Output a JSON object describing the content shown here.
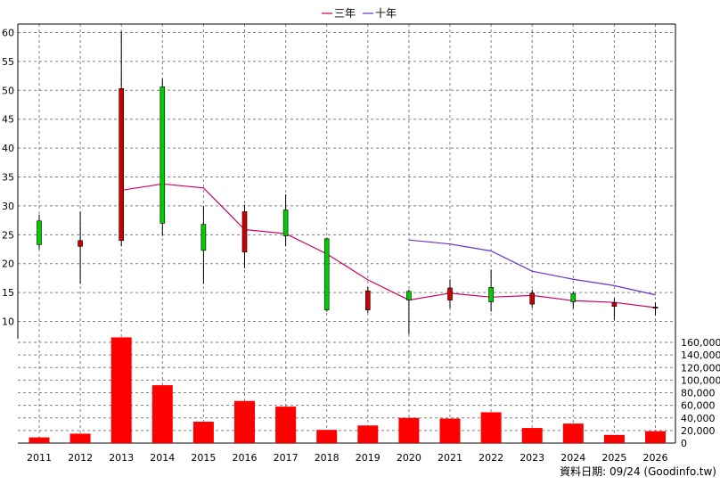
{
  "legend": [
    {
      "label": "三年",
      "color": "#cc0066"
    },
    {
      "label": "十年",
      "color": "#6633cc"
    }
  ],
  "footer": {
    "text": "資料日期: 09/24  (Goodinfo.tw)"
  },
  "colors": {
    "up": "#00cc00",
    "down": "#cc0000",
    "volume": "#ff0000",
    "wick": "#000000",
    "grid": "#808080"
  },
  "chart_data": [
    {
      "type": "candlestick",
      "ylim": [
        7,
        61
      ],
      "yticks": [
        10,
        15,
        20,
        25,
        30,
        35,
        40,
        45,
        50,
        55,
        60
      ],
      "categories": [
        "2011",
        "2012",
        "2013",
        "2014",
        "2015",
        "2016",
        "2017",
        "2018",
        "2019",
        "2020",
        "2021",
        "2022",
        "2023",
        "2024",
        "2025",
        "2026"
      ],
      "ohlc": [
        {
          "year": "2011",
          "open": 23.3,
          "high": 28.5,
          "low": 22.5,
          "close": 27.4
        },
        {
          "year": "2012",
          "open": 24.0,
          "high": 29.0,
          "low": 16.5,
          "close": 23.0
        },
        {
          "year": "2013",
          "open": 50.3,
          "high": 60.2,
          "low": 23.0,
          "close": 24.0
        },
        {
          "year": "2014",
          "open": 27.0,
          "high": 52.0,
          "low": 24.8,
          "close": 50.6
        },
        {
          "year": "2015",
          "open": 22.3,
          "high": 30.0,
          "low": 16.5,
          "close": 26.8
        },
        {
          "year": "2016",
          "open": 29.0,
          "high": 30.2,
          "low": 19.2,
          "close": 22.0
        },
        {
          "year": "2017",
          "open": 24.8,
          "high": 32.0,
          "low": 23.0,
          "close": 29.3
        },
        {
          "year": "2018",
          "open": 12.0,
          "high": 24.5,
          "low": 11.7,
          "close": 24.3
        },
        {
          "year": "2019",
          "open": 15.3,
          "high": 16.0,
          "low": 11.5,
          "close": 12.0
        },
        {
          "year": "2020",
          "open": 13.7,
          "high": 15.5,
          "low": 7.8,
          "close": 15.2
        },
        {
          "year": "2021",
          "open": 15.8,
          "high": 17.3,
          "low": 12.3,
          "close": 13.7
        },
        {
          "year": "2022",
          "open": 13.4,
          "high": 19.0,
          "low": 11.7,
          "close": 15.9
        },
        {
          "year": "2023",
          "open": 14.9,
          "high": 15.5,
          "low": 12.4,
          "close": 13.0
        },
        {
          "year": "2024",
          "open": 13.4,
          "high": 15.2,
          "low": 12.3,
          "close": 14.8
        },
        {
          "year": "2025",
          "open": 13.2,
          "high": 14.0,
          "low": 10.3,
          "close": 12.6
        },
        {
          "year": "2026",
          "open": 12.5,
          "high": 13.3,
          "low": 11.0,
          "close": 12.3
        }
      ],
      "series": [
        {
          "name": "三年",
          "color": "#cc0066",
          "points": [
            [
              "2013",
              32.7
            ],
            [
              "2014",
              33.8
            ],
            [
              "2015",
              33.1
            ],
            [
              "2016",
              25.9
            ],
            [
              "2017",
              25.2
            ],
            [
              "2018",
              21.7
            ],
            [
              "2019",
              17.2
            ],
            [
              "2020",
              13.7
            ],
            [
              "2021",
              14.9
            ],
            [
              "2022",
              14.2
            ],
            [
              "2023",
              14.5
            ],
            [
              "2024",
              13.6
            ],
            [
              "2025",
              13.3
            ],
            [
              "2026",
              12.4
            ]
          ]
        },
        {
          "name": "十年",
          "color": "#6633cc",
          "points": [
            [
              "2020",
              24.1
            ],
            [
              "2021",
              23.4
            ],
            [
              "2022",
              22.2
            ],
            [
              "2023",
              18.7
            ],
            [
              "2024",
              17.3
            ],
            [
              "2025",
              16.2
            ],
            [
              "2026",
              14.6
            ]
          ]
        }
      ]
    },
    {
      "type": "bar",
      "ylim": [
        0,
        170000
      ],
      "yticks": [
        0,
        20000,
        40000,
        60000,
        80000,
        100000,
        120000,
        140000,
        160000
      ],
      "ytick_labels": [
        "0",
        "20,000",
        "40,000",
        "60,000",
        "80,000",
        "100,000",
        "120,000",
        "140,000",
        "160,000"
      ],
      "categories": [
        "2011",
        "2012",
        "2013",
        "2014",
        "2015",
        "2016",
        "2017",
        "2018",
        "2019",
        "2020",
        "2021",
        "2022",
        "2023",
        "2024",
        "2025",
        "2026"
      ],
      "values": [
        9000,
        15000,
        168000,
        92000,
        34000,
        67000,
        58000,
        21000,
        28000,
        40000,
        39000,
        49000,
        24000,
        31000,
        13000,
        19000
      ]
    }
  ]
}
